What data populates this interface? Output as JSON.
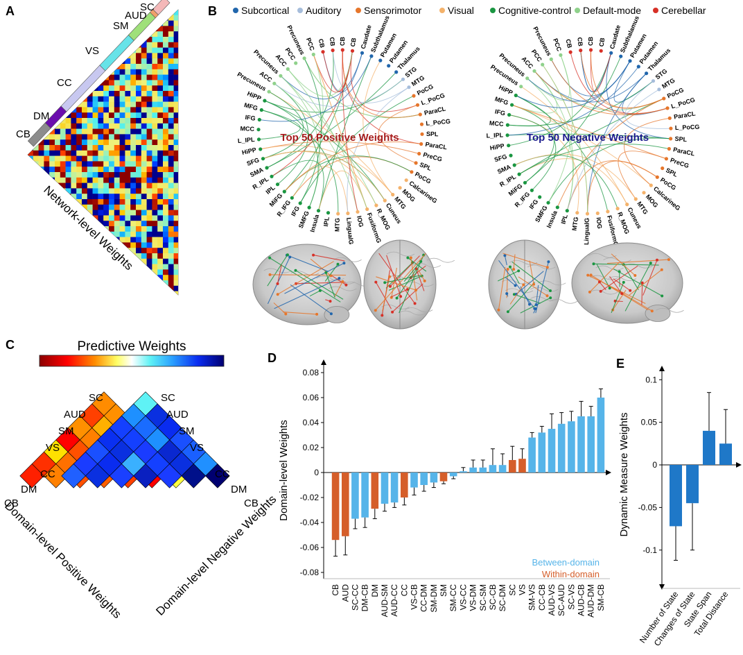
{
  "panels": [
    "A",
    "B",
    "C",
    "D",
    "E"
  ],
  "colors": {
    "subcortical": "#2166ac",
    "auditory": "#a6bddb",
    "sensorimotor": "#e6762b",
    "visual": "#f4b26b",
    "cognitive": "#1a9641",
    "default": "#8fd18b",
    "cerebellar": "#d73027",
    "between": "#56b4e9",
    "within": "#d55e2a",
    "dynamic": "#1f78c8"
  },
  "panel_a": {
    "title": "Network-level Weights",
    "domains": [
      "SC",
      "AUD",
      "SM",
      "VS",
      "CC",
      "DM",
      "CB"
    ],
    "domain_colors": [
      "#f4b8b8",
      "#f1a06a",
      "#9fe07a",
      "#67e3e8",
      "#c8c8f0",
      "#6a0dad",
      "#8c8c8c"
    ]
  },
  "panel_b": {
    "legend": [
      {
        "label": "Subcortical",
        "color": "#2166ac"
      },
      {
        "label": "Auditory",
        "color": "#a6bddb"
      },
      {
        "label": "Sensorimotor",
        "color": "#e6762b"
      },
      {
        "label": "Visual",
        "color": "#f4b26b"
      },
      {
        "label": "Cognitive-control",
        "color": "#1a9641"
      },
      {
        "label": "Default-mode",
        "color": "#8fd18b"
      },
      {
        "label": "Cerebellar",
        "color": "#d73027"
      }
    ],
    "positive_title": "Top 50 Positive Weights",
    "negative_title": "Top 50 Negative Weights",
    "positive_nodes": [
      {
        "label": "Caudate",
        "net": "subcortical"
      },
      {
        "label": "Subthalamus",
        "net": "subcortical"
      },
      {
        "label": "Putamen",
        "net": "subcortical"
      },
      {
        "label": "Putamen",
        "net": "subcortical"
      },
      {
        "label": "Thalamus",
        "net": "subcortical"
      },
      {
        "label": "STG",
        "net": "auditory"
      },
      {
        "label": "MTG",
        "net": "auditory"
      },
      {
        "label": "PoCG",
        "net": "sensorimotor"
      },
      {
        "label": "L_PoCG",
        "net": "sensorimotor"
      },
      {
        "label": "ParaCL",
        "net": "sensorimotor"
      },
      {
        "label": "L_PoCG",
        "net": "sensorimotor"
      },
      {
        "label": "SPL",
        "net": "sensorimotor"
      },
      {
        "label": "ParaCL",
        "net": "sensorimotor"
      },
      {
        "label": "PreCG",
        "net": "sensorimotor"
      },
      {
        "label": "SPL",
        "net": "sensorimotor"
      },
      {
        "label": "PoCG",
        "net": "sensorimotor"
      },
      {
        "label": "CalcarineG",
        "net": "visual"
      },
      {
        "label": "MOG",
        "net": "visual"
      },
      {
        "label": "MTG",
        "net": "visual"
      },
      {
        "label": "Cuneus",
        "net": "visual"
      },
      {
        "label": "R_MOG",
        "net": "visual"
      },
      {
        "label": "FusiformG",
        "net": "visual"
      },
      {
        "label": "IOG",
        "net": "visual"
      },
      {
        "label": "LingualG",
        "net": "visual"
      },
      {
        "label": "MTG",
        "net": "visual"
      },
      {
        "label": "IPL",
        "net": "cognitive"
      },
      {
        "label": "Insula",
        "net": "cognitive"
      },
      {
        "label": "SMFG",
        "net": "cognitive"
      },
      {
        "label": "IFG",
        "net": "cognitive"
      },
      {
        "label": "R_IFG",
        "net": "cognitive"
      },
      {
        "label": "MiFG",
        "net": "cognitive"
      },
      {
        "label": "IPL",
        "net": "cognitive"
      },
      {
        "label": "R_IPL",
        "net": "cognitive"
      },
      {
        "label": "SMA",
        "net": "cognitive"
      },
      {
        "label": "SFG",
        "net": "cognitive"
      },
      {
        "label": "HiPP",
        "net": "cognitive"
      },
      {
        "label": "L_IPL",
        "net": "cognitive"
      },
      {
        "label": "MCC",
        "net": "cognitive"
      },
      {
        "label": "IFG",
        "net": "cognitive"
      },
      {
        "label": "MFG",
        "net": "cognitive"
      },
      {
        "label": "HiPP",
        "net": "cognitive"
      },
      {
        "label": "Precuneus",
        "net": "default"
      },
      {
        "label": "ACC",
        "net": "default"
      },
      {
        "label": "Precuneus",
        "net": "default"
      },
      {
        "label": "ACC",
        "net": "default"
      },
      {
        "label": "PCC",
        "net": "default"
      },
      {
        "label": "Precuneus",
        "net": "default"
      },
      {
        "label": "PCC",
        "net": "default"
      },
      {
        "label": "CB",
        "net": "cerebellar"
      },
      {
        "label": "CB",
        "net": "cerebellar"
      },
      {
        "label": "CB",
        "net": "cerebellar"
      },
      {
        "label": "CB",
        "net": "cerebellar"
      }
    ],
    "negative_nodes": [
      {
        "label": "Caudate",
        "net": "subcortical"
      },
      {
        "label": "Subthalamus",
        "net": "subcortical"
      },
      {
        "label": "Putamen",
        "net": "subcortical"
      },
      {
        "label": "Putamen",
        "net": "subcortical"
      },
      {
        "label": "Thalamus",
        "net": "subcortical"
      },
      {
        "label": "STG",
        "net": "auditory"
      },
      {
        "label": "MTG",
        "net": "auditory"
      },
      {
        "label": "PoCG",
        "net": "sensorimotor"
      },
      {
        "label": "L_PoCG",
        "net": "sensorimotor"
      },
      {
        "label": "ParaCL",
        "net": "sensorimotor"
      },
      {
        "label": "L_PoCG",
        "net": "sensorimotor"
      },
      {
        "label": "SPL",
        "net": "sensorimotor"
      },
      {
        "label": "ParaCL",
        "net": "sensorimotor"
      },
      {
        "label": "PreCG",
        "net": "sensorimotor"
      },
      {
        "label": "SPL",
        "net": "sensorimotor"
      },
      {
        "label": "PoCG",
        "net": "sensorimotor"
      },
      {
        "label": "CalcarineG",
        "net": "visual"
      },
      {
        "label": "MOG",
        "net": "visual"
      },
      {
        "label": "MTG",
        "net": "visual"
      },
      {
        "label": "Cuneus",
        "net": "visual"
      },
      {
        "label": "R_MOG",
        "net": "visual"
      },
      {
        "label": "FusiformG",
        "net": "visual"
      },
      {
        "label": "IOG",
        "net": "visual"
      },
      {
        "label": "LingualG",
        "net": "visual"
      },
      {
        "label": "MTG",
        "net": "visual"
      },
      {
        "label": "IPL",
        "net": "cognitive"
      },
      {
        "label": "Insula",
        "net": "cognitive"
      },
      {
        "label": "SMFG",
        "net": "cognitive"
      },
      {
        "label": "IFG",
        "net": "cognitive"
      },
      {
        "label": "R_IFG",
        "net": "cognitive"
      },
      {
        "label": "MiFG",
        "net": "cognitive"
      },
      {
        "label": "R_IPL",
        "net": "cognitive"
      },
      {
        "label": "SMA",
        "net": "cognitive"
      },
      {
        "label": "SFG",
        "net": "cognitive"
      },
      {
        "label": "HiPP",
        "net": "cognitive"
      },
      {
        "label": "L_IPL",
        "net": "cognitive"
      },
      {
        "label": "MCC",
        "net": "cognitive"
      },
      {
        "label": "IFG",
        "net": "cognitive"
      },
      {
        "label": "MFG",
        "net": "cognitive"
      },
      {
        "label": "HiPP",
        "net": "cognitive"
      },
      {
        "label": "Precuneus",
        "net": "default"
      },
      {
        "label": "Precuneus",
        "net": "default"
      },
      {
        "label": "ACC",
        "net": "default"
      },
      {
        "label": "PCC",
        "net": "default"
      },
      {
        "label": "Precuneus",
        "net": "default"
      },
      {
        "label": "PCC",
        "net": "default"
      },
      {
        "label": "CB",
        "net": "cerebellar"
      },
      {
        "label": "CB",
        "net": "cerebellar"
      },
      {
        "label": "CB",
        "net": "cerebellar"
      },
      {
        "label": "CB",
        "net": "cerebellar"
      }
    ]
  },
  "panel_c": {
    "colorbar_title": "Predictive Weights",
    "positive_caption": "Domain-level Positive Weights",
    "negative_caption": "Domain-level Negative Weights",
    "domains": [
      "SC",
      "AUD",
      "SM",
      "VS",
      "CC",
      "DM",
      "CB"
    ]
  },
  "chart_data": [
    {
      "type": "bar",
      "panel": "D",
      "ylabel": "Domain-level Weights",
      "ylim": [
        -0.085,
        0.085
      ],
      "yticks": [
        -0.08,
        -0.06,
        -0.04,
        -0.02,
        0,
        0.02,
        0.04,
        0.06,
        0.08
      ],
      "legend": [
        "Between-domain",
        "Within-domain"
      ],
      "categories": [
        "CB",
        "AUD",
        "SC-CC",
        "DM-CB",
        "DM",
        "AUD-SM",
        "AUD-CC",
        "CC",
        "VS-CB",
        "CC-DM",
        "SM-DM",
        "SM",
        "SM-CC",
        "VS-CC",
        "VS-DM",
        "SC-SM",
        "SC-CB",
        "SC-DM",
        "SC",
        "VS",
        "SM-VS",
        "CC-CB",
        "AUD-VS",
        "SC-AUD",
        "SC-VS",
        "AUD-CB",
        "AUD-DM",
        "SM-CB"
      ],
      "values": [
        -0.054,
        -0.051,
        -0.037,
        -0.036,
        -0.029,
        -0.025,
        -0.024,
        -0.02,
        -0.012,
        -0.01,
        -0.008,
        -0.007,
        -0.003,
        0.001,
        0.004,
        0.004,
        0.006,
        0.006,
        0.01,
        0.011,
        0.028,
        0.032,
        0.035,
        0.039,
        0.041,
        0.045,
        0.045,
        0.06
      ],
      "errors": [
        0.013,
        0.015,
        0.008,
        0.008,
        0.008,
        0.006,
        0.004,
        0.006,
        0.006,
        0.005,
        0.004,
        0.002,
        0.002,
        0.003,
        0.006,
        0.006,
        0.013,
        0.009,
        0.011,
        0.008,
        0.004,
        0.005,
        0.012,
        0.009,
        0.008,
        0.012,
        0.008,
        0.007
      ],
      "group": [
        "within",
        "within",
        "between",
        "between",
        "within",
        "between",
        "between",
        "within",
        "between",
        "between",
        "between",
        "within",
        "between",
        "between",
        "between",
        "between",
        "between",
        "between",
        "within",
        "within",
        "between",
        "between",
        "between",
        "between",
        "between",
        "between",
        "between",
        "between"
      ]
    },
    {
      "type": "bar",
      "panel": "E",
      "ylabel": "Dynamic Measure Weights",
      "ylim": [
        -0.145,
        0.11
      ],
      "yticks": [
        -0.1,
        -0.05,
        0,
        0.05,
        0.1
      ],
      "categories": [
        "Number of State",
        "Changes of State",
        "State Span",
        "Total Distance"
      ],
      "values": [
        -0.072,
        -0.045,
        0.04,
        0.025
      ],
      "errors": [
        0.04,
        0.055,
        0.045,
        0.04
      ]
    }
  ]
}
